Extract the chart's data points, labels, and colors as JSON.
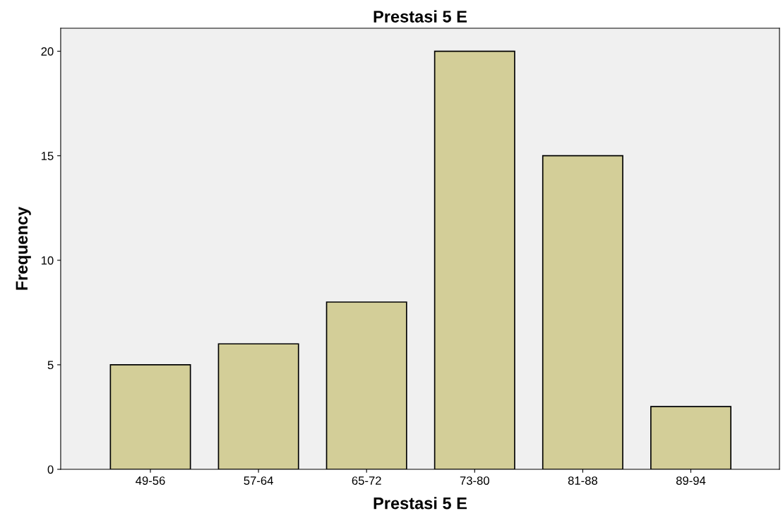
{
  "chart_data": {
    "type": "bar",
    "title": "Prestasi 5 E",
    "xlabel": "Prestasi 5 E",
    "ylabel": "Frequency",
    "categories": [
      "49-56",
      "57-64",
      "65-72",
      "73-80",
      "81-88",
      "89-94"
    ],
    "values": [
      5,
      6,
      8,
      20,
      15,
      3
    ],
    "color": "#d3ce98",
    "ylim": [
      0,
      21.1
    ],
    "yticks": [
      0,
      5,
      10,
      15,
      20
    ],
    "grid": false,
    "legend": false
  }
}
